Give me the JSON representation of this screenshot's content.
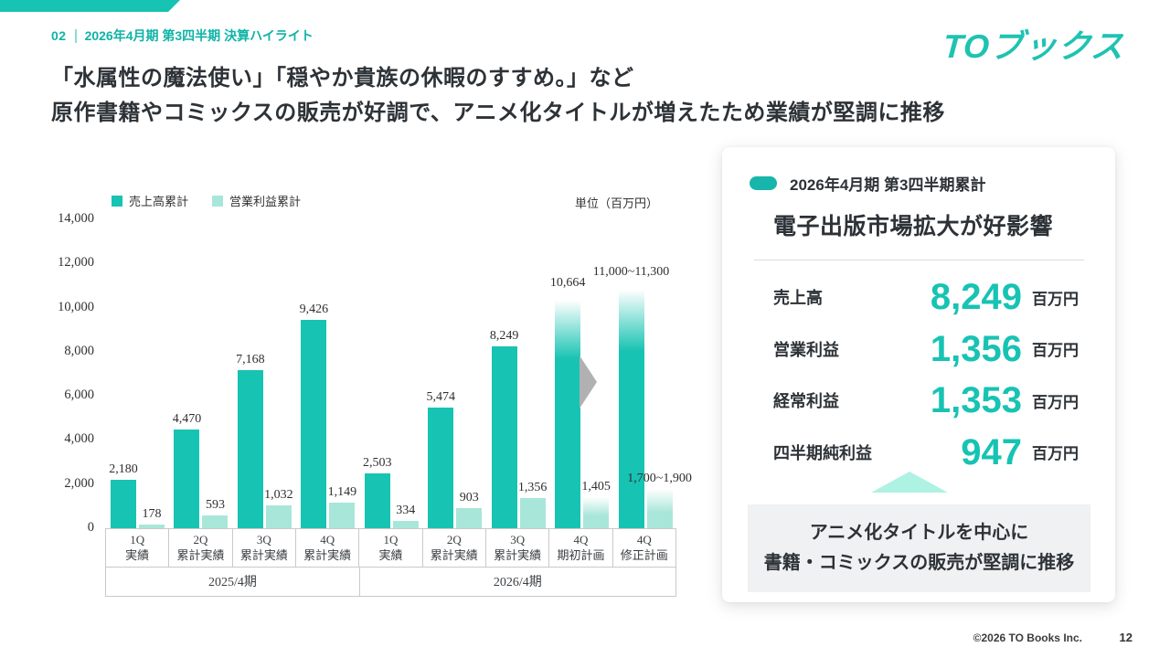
{
  "slide": {
    "kicker": {
      "number": "02",
      "title": "2026年4月期 第3四半期 決算ハイライト"
    },
    "headline_line1": "「水属性の魔法使い」「穏やか貴族の休暇のすすめ。」など",
    "headline_line2": "原作書籍やコミックスの販売が好調で、アニメ化タイトルが増えたため業績が堅調に推移",
    "logo": "TOブックス",
    "footer": {
      "copyright": "©2026  TO Books Inc.",
      "page": "12"
    }
  },
  "chart_data": {
    "type": "bar",
    "unit_note": "単位（百万円）",
    "legend": [
      {
        "label": "売上高累計",
        "color": "#17c3b2"
      },
      {
        "label": "営業利益累計",
        "color": "#a9e6da"
      }
    ],
    "ylim": [
      0,
      14000
    ],
    "yticks": [
      {
        "value": 0,
        "label": "0"
      },
      {
        "value": 2000,
        "label": "2,000"
      },
      {
        "value": 4000,
        "label": "4,000"
      },
      {
        "value": 6000,
        "label": "6,000"
      },
      {
        "value": 8000,
        "label": "8,000"
      },
      {
        "value": 10000,
        "label": "10,000"
      },
      {
        "value": 12000,
        "label": "12,000"
      },
      {
        "value": 14000,
        "label": "14,000"
      }
    ],
    "grid": false,
    "legend_position": "top-left",
    "groups": [
      {
        "quarter": "1Q",
        "period": "実績",
        "year": "2025/4期",
        "sales": 2180,
        "sales_label": "2,180",
        "profit": 178,
        "profit_label": "178",
        "forecast": false
      },
      {
        "quarter": "2Q",
        "period": "累計実績",
        "year": "2025/4期",
        "sales": 4470,
        "sales_label": "4,470",
        "profit": 593,
        "profit_label": "593",
        "forecast": false
      },
      {
        "quarter": "3Q",
        "period": "累計実績",
        "year": "2025/4期",
        "sales": 7168,
        "sales_label": "7,168",
        "profit": 1032,
        "profit_label": "1,032",
        "forecast": false
      },
      {
        "quarter": "4Q",
        "period": "累計実績",
        "year": "2025/4期",
        "sales": 9426,
        "sales_label": "9,426",
        "profit": 1149,
        "profit_label": "1,149",
        "forecast": false
      },
      {
        "quarter": "1Q",
        "period": "実績",
        "year": "2026/4期",
        "sales": 2503,
        "sales_label": "2,503",
        "profit": 334,
        "profit_label": "334",
        "forecast": false
      },
      {
        "quarter": "2Q",
        "period": "累計実績",
        "year": "2026/4期",
        "sales": 5474,
        "sales_label": "5,474",
        "profit": 903,
        "profit_label": "903",
        "forecast": false
      },
      {
        "quarter": "3Q",
        "period": "累計実績",
        "year": "2026/4期",
        "sales": 8249,
        "sales_label": "8,249",
        "profit": 1356,
        "profit_label": "1,356",
        "forecast": false
      },
      {
        "quarter": "4Q",
        "period": "期初計画",
        "year": "2026/4期",
        "sales": 10664,
        "sales_label": "10,664",
        "profit": 1405,
        "profit_label": "1,405",
        "forecast": true
      },
      {
        "quarter": "4Q",
        "period": "修正計画",
        "year": "2026/4期",
        "sales": 11150,
        "sales_label": "11,000~11,300",
        "profit": 1800,
        "profit_label": "1,700~1,900",
        "forecast": true
      }
    ],
    "year_groups": [
      {
        "label": "2025/4期",
        "span": 4
      },
      {
        "label": "2026/4期",
        "span": 5
      }
    ]
  },
  "card": {
    "tag": "2026年4月期 第3四半期累計",
    "title": "電子出版市場拡大が好影響",
    "metrics": [
      {
        "label": "売上高",
        "value": "8,249",
        "unit": "百万円"
      },
      {
        "label": "営業利益",
        "value": "1,356",
        "unit": "百万円"
      },
      {
        "label": "経常利益",
        "value": "1,353",
        "unit": "百万円"
      },
      {
        "label": "四半期純利益",
        "value": "947",
        "unit": "百万円"
      }
    ],
    "note_line1": "アニメ化タイトルを中心に",
    "note_line2": "書籍・コミックスの販売が堅調に推移"
  },
  "colors": {
    "teal": "#17c3b2",
    "light_teal": "#a9e6da",
    "kicker_teal": "#0fb3a6",
    "dark_text": "#2d3237",
    "mint_triangle": "#aef2e3",
    "note_bg": "#f0f1f2",
    "arrow_gray": "#b1b1b4"
  }
}
